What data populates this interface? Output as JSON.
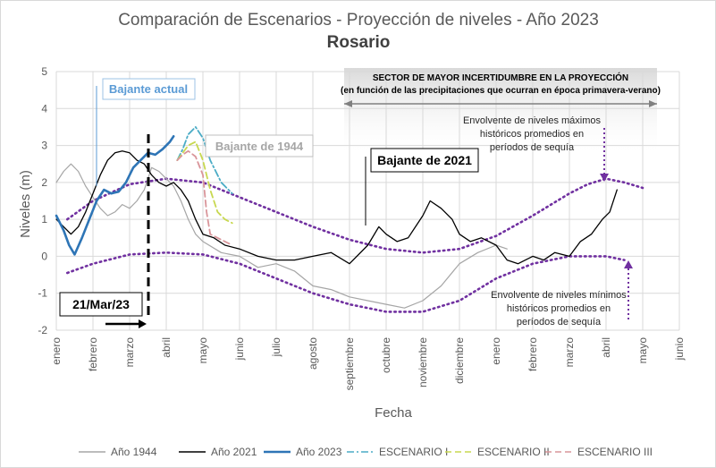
{
  "chart_data": {
    "type": "line",
    "title": "Comparación de Escenarios - Proyección de niveles - Año 2023",
    "subtitle": "Rosario",
    "xlabel": "Fecha",
    "ylabel": "Niveles (m)",
    "ylim": [
      -2,
      5
    ],
    "yticks": [
      "-2",
      "-1",
      "0",
      "1",
      "2",
      "3",
      "4",
      "5"
    ],
    "months": [
      "enero",
      "febrero",
      "marzo",
      "abril",
      "mayo",
      "junio",
      "julio",
      "agosto",
      "septiembre",
      "octubre",
      "noviembre",
      "diciembre",
      "enero",
      "febrero",
      "marzo",
      "abril",
      "mayo",
      "junio"
    ],
    "xlim_months": [
      0,
      17
    ],
    "grid": true,
    "legend_position": "bottom",
    "series": [
      {
        "name": "Año 1944",
        "color": "#a6a6a6",
        "style": "solid",
        "x": [
          0,
          0.2,
          0.4,
          0.6,
          0.8,
          1.0,
          1.2,
          1.4,
          1.6,
          1.8,
          2.0,
          2.2,
          2.4,
          2.6,
          2.8,
          3.0,
          3.2,
          3.4,
          3.6,
          3.8,
          4.0,
          4.5,
          5.0,
          5.5,
          6.0,
          6.5,
          7.0,
          7.5,
          8.0,
          8.5,
          9.0,
          9.5,
          10.0,
          10.5,
          11.0,
          11.5,
          12.0,
          12.3
        ],
        "y": [
          2.0,
          2.3,
          2.5,
          2.3,
          1.9,
          1.6,
          1.3,
          1.1,
          1.2,
          1.4,
          1.3,
          1.5,
          1.8,
          2.4,
          2.3,
          2.1,
          1.9,
          1.5,
          1.0,
          0.6,
          0.4,
          0.1,
          0.0,
          -0.3,
          -0.2,
          -0.4,
          -0.8,
          -0.9,
          -1.1,
          -1.2,
          -1.3,
          -1.4,
          -1.2,
          -0.8,
          -0.2,
          0.1,
          0.3,
          0.2
        ]
      },
      {
        "name": "Año 2021",
        "color": "#000000",
        "style": "solid",
        "x": [
          0,
          0.2,
          0.4,
          0.6,
          0.8,
          1.0,
          1.2,
          1.4,
          1.6,
          1.8,
          2.0,
          2.2,
          2.4,
          2.6,
          2.8,
          3.0,
          3.2,
          3.4,
          3.6,
          3.8,
          4.0,
          4.3,
          4.6,
          5.0,
          5.5,
          6.0,
          6.5,
          7.0,
          7.5,
          8.0,
          8.5,
          8.8,
          9.0,
          9.3,
          9.6,
          10.0,
          10.2,
          10.5,
          10.8,
          11.0,
          11.3,
          11.6,
          12.0,
          12.3,
          12.6,
          13.0,
          13.3,
          13.6,
          14.0,
          14.3,
          14.6,
          14.9,
          15.1,
          15.3
        ],
        "y": [
          1.0,
          0.8,
          0.6,
          0.8,
          1.2,
          1.7,
          2.2,
          2.6,
          2.8,
          2.85,
          2.8,
          2.6,
          2.5,
          2.2,
          2.0,
          1.9,
          2.0,
          1.8,
          1.5,
          1.0,
          0.6,
          0.5,
          0.3,
          0.2,
          0.0,
          -0.1,
          -0.1,
          0.0,
          0.1,
          -0.2,
          0.3,
          0.8,
          0.6,
          0.4,
          0.5,
          1.1,
          1.5,
          1.3,
          1.0,
          0.6,
          0.4,
          0.5,
          0.3,
          -0.1,
          -0.2,
          0.0,
          -0.1,
          0.1,
          0.0,
          0.4,
          0.6,
          1.0,
          1.2,
          1.8
        ]
      },
      {
        "name": "Año 2023",
        "color": "#2e75b6",
        "style": "solid",
        "x": [
          0,
          0.2,
          0.35,
          0.5,
          0.7,
          0.9,
          1.1,
          1.3,
          1.5,
          1.7,
          1.9,
          2.1,
          2.3,
          2.5,
          2.7,
          2.9,
          3.1,
          3.2
        ],
        "y": [
          1.1,
          0.7,
          0.3,
          0.05,
          0.5,
          1.0,
          1.5,
          1.8,
          1.7,
          1.75,
          2.0,
          2.4,
          2.6,
          2.8,
          2.75,
          2.9,
          3.1,
          3.25
        ]
      },
      {
        "name": "ESCENARIO I",
        "color": "#4bacc6",
        "style": "dashdot",
        "x": [
          3.3,
          3.45,
          3.6,
          3.8,
          4.0,
          4.2,
          4.5,
          4.8
        ],
        "y": [
          2.6,
          2.9,
          3.3,
          3.5,
          3.2,
          2.6,
          2.0,
          1.7
        ]
      },
      {
        "name": "ESCENARIO II",
        "color": "#c8d850",
        "style": "dashed",
        "x": [
          3.3,
          3.45,
          3.6,
          3.8,
          4.0,
          4.2,
          4.4,
          4.6,
          4.8
        ],
        "y": [
          2.6,
          2.8,
          3.0,
          3.1,
          2.6,
          1.8,
          1.2,
          1.0,
          0.9
        ]
      },
      {
        "name": "ESCENARIO III",
        "color": "#d9959a",
        "style": "dashed",
        "x": [
          3.3,
          3.45,
          3.6,
          3.8,
          4.0,
          4.1,
          4.2,
          4.5,
          4.8
        ],
        "y": [
          2.6,
          2.75,
          2.85,
          2.7,
          2.2,
          1.2,
          0.6,
          0.45,
          0.3
        ]
      }
    ],
    "envelopes": [
      {
        "name": "Envolvente de niveles máximos",
        "color": "#7030a0",
        "style": "dotted",
        "x": [
          0.3,
          1.0,
          2.0,
          3.0,
          4.0,
          5.0,
          6.0,
          7.0,
          8.0,
          9.0,
          10.0,
          11.0,
          12.0,
          13.0,
          14.0,
          14.5,
          15.0,
          15.5,
          16.0
        ],
        "y": [
          1.0,
          1.5,
          1.95,
          2.1,
          2.0,
          1.6,
          1.2,
          0.8,
          0.45,
          0.2,
          0.1,
          0.2,
          0.55,
          1.1,
          1.7,
          1.95,
          2.1,
          2.0,
          1.85
        ]
      },
      {
        "name": "Envolvente de niveles mínimos",
        "color": "#7030a0",
        "style": "dotted",
        "x": [
          0.3,
          1.0,
          2.0,
          3.0,
          4.0,
          5.0,
          6.0,
          7.0,
          8.0,
          9.0,
          10.0,
          11.0,
          12.0,
          13.0,
          14.0,
          15.0,
          15.5
        ],
        "y": [
          -0.45,
          -0.2,
          0.05,
          0.1,
          0.05,
          -0.2,
          -0.6,
          -1.0,
          -1.3,
          -1.5,
          -1.5,
          -1.2,
          -0.6,
          -0.2,
          0.0,
          0.0,
          -0.1
        ]
      }
    ],
    "annotations": {
      "bajante_actual": "Bajante actual",
      "bajante_1944": "Bajante de 1944",
      "bajante_2021": "Bajante de 2021",
      "fecha_actual": "21/Mar/23",
      "sector_title": "SECTOR DE MAYOR INCERTIDUMBRE EN LA PROYECCIÓN",
      "sector_sub": "(en función de las precipitaciones que ocurran  en época primavera-verano)",
      "env_max_lines": [
        "Envolvente de niveles máximos",
        "históricos promedios en",
        "períodos de sequía"
      ],
      "env_min_lines": [
        "Envolvente de niveles mínimos",
        "históricos promedios en",
        "períodos de sequía"
      ]
    },
    "legend": [
      "Año 1944",
      "Año 2021",
      "Año 2023",
      "ESCENARIO I",
      "ESCENARIO II",
      "ESCENARIO III"
    ]
  }
}
